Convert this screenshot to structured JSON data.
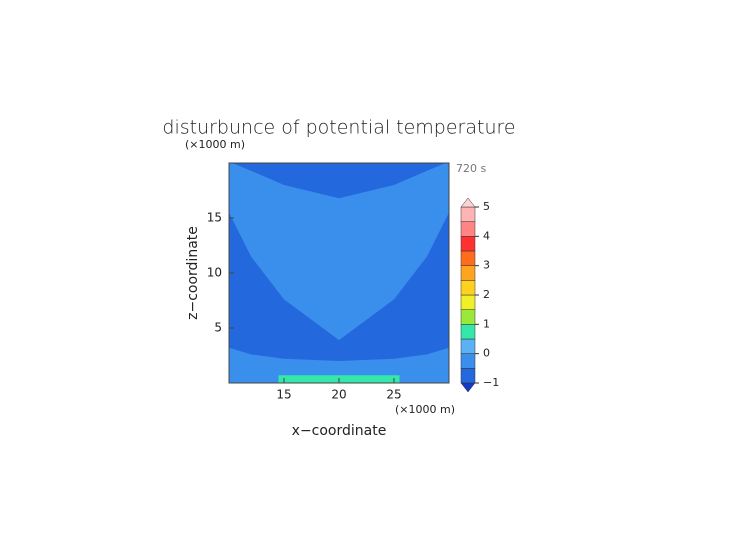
{
  "chart_data": {
    "type": "contour",
    "title": "disturbunce of potential temperature",
    "time_label": "720 s",
    "x_label": "x−coordinate",
    "x_unit": "(×1000 m)",
    "y_label": "z−coordinate",
    "y_unit": "(×1000 m)",
    "xlim": [
      10,
      30
    ],
    "ylim": [
      0,
      20
    ],
    "xticks": [
      15,
      20,
      25
    ],
    "yticks": [
      5,
      10,
      15
    ],
    "regions": [
      {
        "level": -0.25,
        "x": [
          10,
          30,
          30,
          10
        ],
        "z": [
          0,
          0,
          20,
          20
        ]
      },
      {
        "level": -0.75,
        "x": [
          10.3,
          12,
          15,
          20,
          25,
          28,
          29.7
        ],
        "z": [
          20,
          19.3,
          18,
          16.8,
          18,
          19.3,
          20
        ]
      },
      {
        "level": -0.75,
        "x": [
          10,
          12,
          15,
          20,
          25,
          28,
          30,
          30,
          28,
          25,
          20,
          15,
          12,
          10
        ],
        "z": [
          15.5,
          11.5,
          7.6,
          3.9,
          7.6,
          11.5,
          15.5,
          3.2,
          2.6,
          2.2,
          2,
          2.2,
          2.6,
          3.2
        ]
      },
      {
        "level": 0.75,
        "x": [
          14.5,
          25.5,
          25.5,
          14.5
        ],
        "z": [
          0,
          0,
          0.7,
          0.7
        ]
      }
    ],
    "colorbar": {
      "levels": [
        -1,
        -0.5,
        0,
        0.5,
        1,
        1.5,
        2,
        2.5,
        3,
        3.5,
        4,
        4.5,
        5
      ],
      "colors": [
        "#2468de",
        "#3a8eec",
        "#5ab2f4",
        "#33e8a8",
        "#9ae83a",
        "#f0f028",
        "#ffd020",
        "#ffa41e",
        "#ff6c1c",
        "#ff3030",
        "#ff8484",
        "#ffb4b4"
      ],
      "under_color": "#1438c8",
      "over_color": "#ffd2d2",
      "ticks": [
        {
          "value": -1,
          "label": "−1"
        },
        0,
        1,
        2,
        3,
        4,
        5
      ]
    }
  }
}
